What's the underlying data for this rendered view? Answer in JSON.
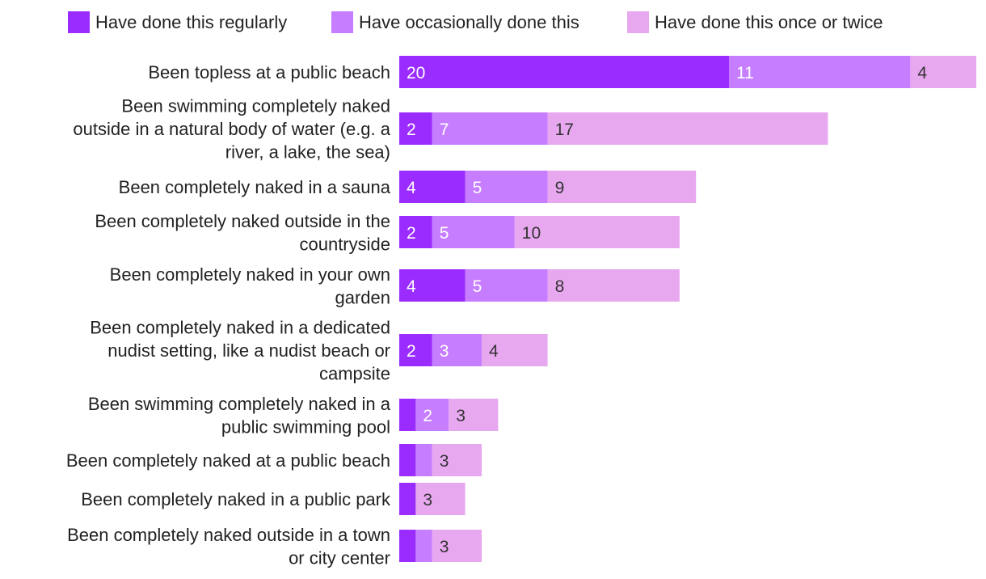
{
  "chart_data": {
    "type": "bar",
    "orientation": "horizontal",
    "stacked": true,
    "title": "",
    "xlabel": "",
    "ylabel": "",
    "grid": false,
    "legend_position": "top",
    "categories": [
      "Been topless at a public beach",
      "Been swimming completely naked outside in a natural body of water (e.g. a river, a lake, the sea)",
      "Been completely naked in a sauna",
      "Been completely naked outside in the countryside",
      "Been completely naked in your own garden",
      "Been completely naked in a dedicated nudist setting, like a nudist beach or campsite",
      "Been swimming completely naked in a public swimming pool",
      "Been completely naked at a public beach",
      "Been completely naked in a public park",
      "Been completely naked outside in a town or city center"
    ],
    "category_lines": [
      [
        "Been topless at a public beach"
      ],
      [
        "Been swimming completely naked",
        "outside in a natural body of water (e.g. a",
        "river, a lake, the sea)"
      ],
      [
        "Been completely naked in a sauna"
      ],
      [
        "Been completely naked outside in the",
        "countryside"
      ],
      [
        "Been completely naked in your own",
        "garden"
      ],
      [
        "Been completely naked in a dedicated",
        "nudist setting, like a nudist beach or",
        "campsite"
      ],
      [
        "Been swimming completely naked in a",
        "public swimming pool"
      ],
      [
        "Been completely naked at a public beach"
      ],
      [
        "Been completely naked in a public park"
      ],
      [
        "Been completely naked outside in a town",
        "or city center"
      ]
    ],
    "series": [
      {
        "name": "Have done this regularly",
        "color": "#9b2cff",
        "label_color": "#ffffff",
        "values": [
          20,
          2,
          4,
          2,
          4,
          2,
          1,
          1,
          1,
          1
        ],
        "labels": [
          "20",
          "2",
          "4",
          "2",
          "4",
          "2",
          "",
          "",
          "",
          ""
        ]
      },
      {
        "name": "Have occasionally done this",
        "color": "#c77dff",
        "label_color": "#ffffff",
        "values": [
          11,
          7,
          5,
          5,
          5,
          3,
          2,
          1,
          0,
          1
        ],
        "labels": [
          "11",
          "7",
          "5",
          "5",
          "5",
          "3",
          "2",
          "",
          "",
          ""
        ]
      },
      {
        "name": "Have done this once or twice",
        "color": "#e8a8f0",
        "label_color": "#333333",
        "values": [
          4,
          17,
          9,
          10,
          8,
          4,
          3,
          3,
          3,
          3
        ],
        "labels": [
          "4",
          "17",
          "9",
          "10",
          "8",
          "4",
          "3",
          "3",
          "3",
          "3"
        ]
      }
    ],
    "xlim": [
      0,
      35
    ]
  }
}
